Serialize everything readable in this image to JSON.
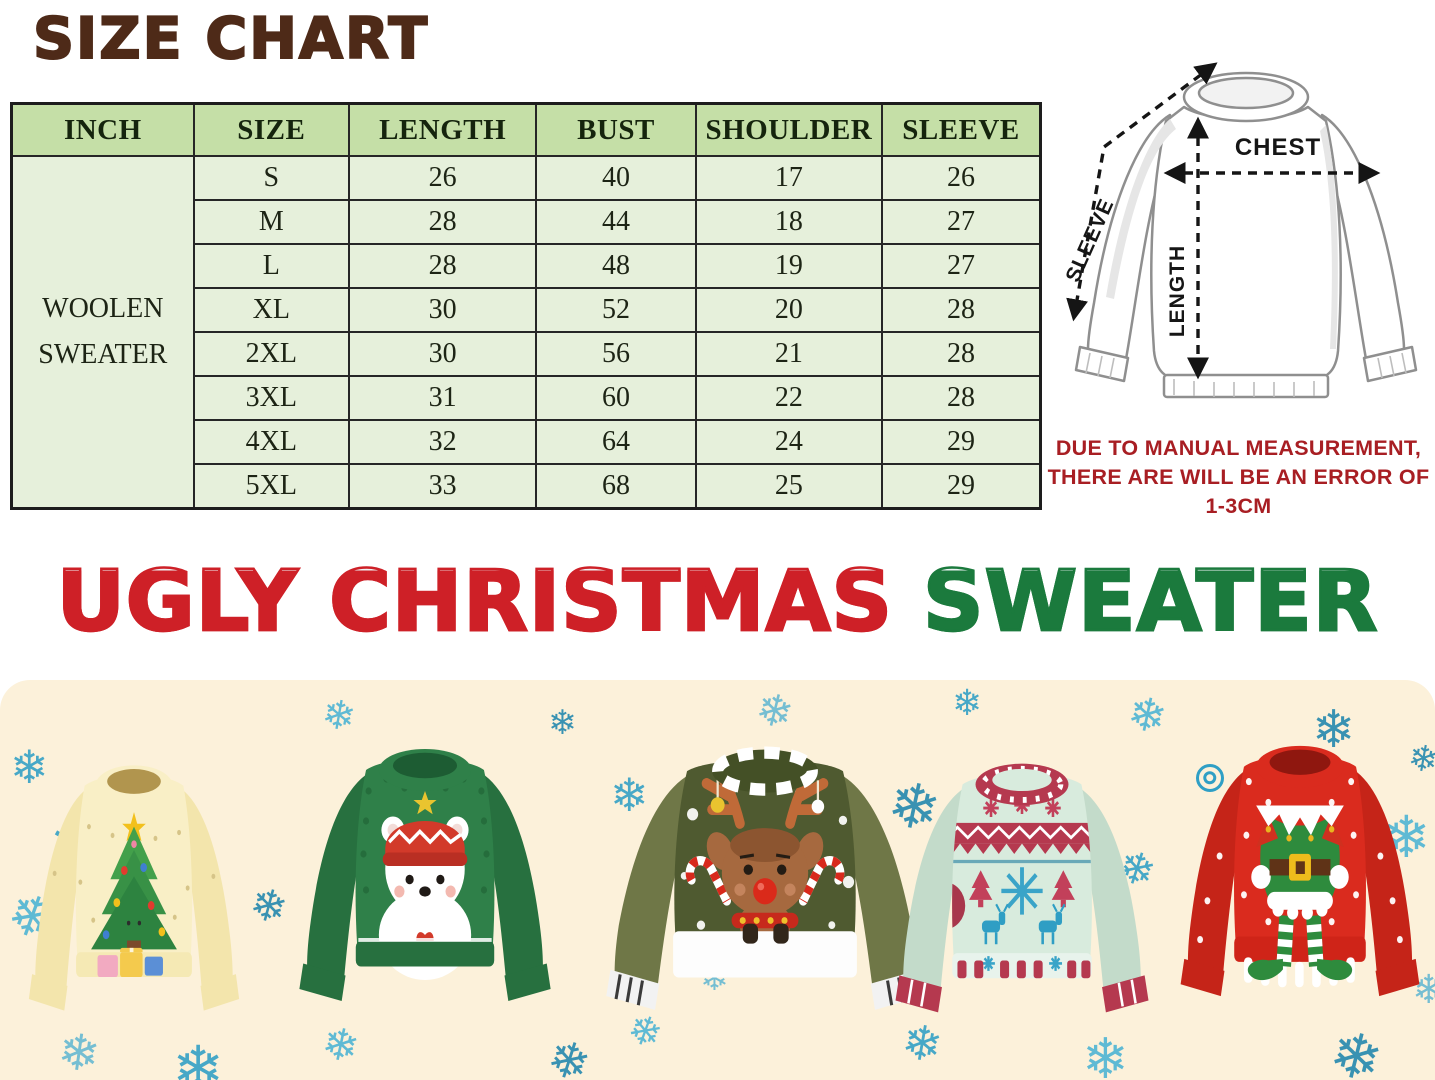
{
  "title": "SIZE CHART",
  "size_table": {
    "headers": {
      "inch": "INCH",
      "size": "SIZE",
      "length": "LENGTH",
      "bust": "BUST",
      "shoulder": "SHOULDER",
      "sleeve": "SLEEVE"
    },
    "product_line1": "WOOLEN",
    "product_line2": "SWEATER",
    "rows": [
      {
        "size": "S",
        "length": "26",
        "bust": "40",
        "shoulder": "17",
        "sleeve": "26"
      },
      {
        "size": "M",
        "length": "28",
        "bust": "44",
        "shoulder": "18",
        "sleeve": "27"
      },
      {
        "size": "L",
        "length": "28",
        "bust": "48",
        "shoulder": "19",
        "sleeve": "27"
      },
      {
        "size": "XL",
        "length": "30",
        "bust": "52",
        "shoulder": "20",
        "sleeve": "28"
      },
      {
        "size": "2XL",
        "length": "30",
        "bust": "56",
        "shoulder": "21",
        "sleeve": "28"
      },
      {
        "size": "3XL",
        "length": "31",
        "bust": "60",
        "shoulder": "22",
        "sleeve": "28"
      },
      {
        "size": "4XL",
        "length": "32",
        "bust": "64",
        "shoulder": "24",
        "sleeve": "29"
      },
      {
        "size": "5XL",
        "length": "33",
        "bust": "68",
        "shoulder": "25",
        "sleeve": "29"
      }
    ]
  },
  "measurement_diagram": {
    "chest_label": "CHEST",
    "length_label": "LENGTH",
    "sleeve_label": "SLEEVE",
    "note_line1": "DUE TO MANUAL MEASUREMENT,",
    "note_line2": "THERE ARE WILL BE AN ERROR OF 1-3CM"
  },
  "banner": {
    "red_text": "UGLY CHRISTMAS",
    "green_text": "SWEATER"
  },
  "footer": {
    "sweaters": [
      {
        "icon": "christmas-tree-sweater-icon"
      },
      {
        "icon": "polar-bear-sweater-icon"
      },
      {
        "icon": "reindeer-sweater-icon"
      },
      {
        "icon": "fair-isle-sweater-icon"
      },
      {
        "icon": "elf-sweater-icon"
      }
    ]
  },
  "colors": {
    "title_brown": "#4e2a18",
    "table_header_green": "#c5dfa7",
    "table_body_green": "#e6f0db",
    "note_red": "#a81e23",
    "banner_red": "#ce2027",
    "banner_green": "#1b7a3d",
    "footer_cream": "#fcf1da",
    "snowflake_blue": "#2f9fc5"
  }
}
